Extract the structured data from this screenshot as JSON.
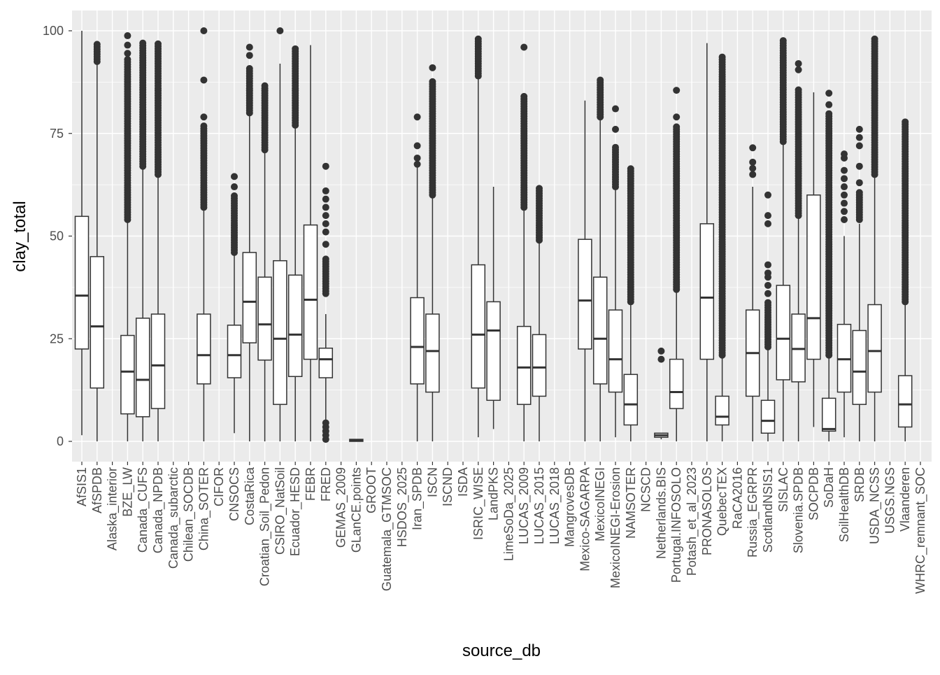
{
  "chart_data": {
    "type": "boxplot",
    "title": "",
    "xlabel": "source_db",
    "ylabel": "clay_total",
    "ylim": [
      0,
      100
    ],
    "yticks": [
      0,
      25,
      50,
      75,
      100
    ],
    "grid": true,
    "categories": [
      "AfSIS1",
      "AfSPDB",
      "Alaska_interior",
      "BZE_LW",
      "Canada_CUFS",
      "Canada_NPDB",
      "Canada_subarctic",
      "Chilean_SOCDB",
      "China_SOTER",
      "CIFOR",
      "CNSOCS",
      "CostaRica",
      "Croatian_Soil_Pedon",
      "CSIRO_NatSoil",
      "Ecuador_HESD",
      "FEBR",
      "FRED",
      "GEMAS_2009",
      "GLanCE.points",
      "GROOT",
      "Guatemala_GTMSOC",
      "HSDOS_2025",
      "Iran_SPDB",
      "ISCN",
      "ISCND",
      "ISDA",
      "ISRIC_WISE",
      "LandPKS",
      "LimeSoDa_2025",
      "LUCAS_2009",
      "LUCAS_2015",
      "LUCAS_2018",
      "MangrovesDB",
      "Mexico-SAGARPA",
      "MexicoINEGI",
      "MexicoINEGI-Erosion",
      "NAMSOTER",
      "NCSCD",
      "Netherlands.BIS",
      "Portugal.INFOSOLO",
      "Potash_et_al_2023",
      "PRONASOLOS",
      "QuebecTEX",
      "RaCA2016",
      "Russia_EGRPR",
      "ScotlandNSIS1",
      "SISLAC",
      "Slovenia.SPDB",
      "SOCPDB",
      "SoDaH",
      "SoilHealthDB",
      "SRDB",
      "USDA_NCSS",
      "USGS.NGS",
      "Vlaanderen",
      "WHRC_remnant_SOC"
    ],
    "boxes": {
      "AfSIS1": {
        "whisker": [
          1.5,
          100
        ],
        "q1": 22.5,
        "median": 35.5,
        "q3": 54.8
      },
      "AfSPDB": {
        "whisker": [
          0,
          92
        ],
        "q1": 13,
        "median": 28,
        "q3": 45,
        "outliers_dense": [
          92.5,
          97
        ]
      },
      "BZE_LW": {
        "whisker": [
          0,
          54
        ],
        "q1": 6.7,
        "median": 17,
        "q3": 25.8,
        "outliers_dense": [
          54,
          93
        ],
        "outliers": [
          94.5,
          96.5,
          98.8
        ]
      },
      "Canada_CUFS": {
        "whisker": [
          0,
          67
        ],
        "q1": 6,
        "median": 15,
        "q3": 30,
        "outliers_dense": [
          67,
          97
        ]
      },
      "Canada_NPDB": {
        "whisker": [
          0,
          65
        ],
        "q1": 8,
        "median": 18.5,
        "q3": 31,
        "outliers_dense": [
          65,
          97
        ]
      },
      "China_SOTER": {
        "whisker": [
          0,
          57
        ],
        "q1": 14,
        "median": 21,
        "q3": 31,
        "outliers_dense": [
          57,
          77
        ],
        "outliers": [
          79,
          88,
          100
        ]
      },
      "CNSOCS": {
        "whisker": [
          2,
          46
        ],
        "q1": 15.5,
        "median": 21,
        "q3": 28.3,
        "outliers_dense": [
          46,
          60
        ],
        "outliers": [
          62,
          64.5
        ]
      },
      "CostaRica": {
        "whisker": [
          0,
          80
        ],
        "q1": 24,
        "median": 34,
        "q3": 46,
        "outliers_dense": [
          80,
          91
        ],
        "outliers": [
          94,
          96
        ]
      },
      "Croatian_Soil_Pedon": {
        "whisker": [
          0,
          71
        ],
        "q1": 19.8,
        "median": 28.5,
        "q3": 40,
        "outliers_dense": [
          71,
          87
        ]
      },
      "CSIRO_NatSoil": {
        "whisker": [
          0,
          92
        ],
        "q1": 9,
        "median": 25,
        "q3": 44,
        "outliers": [
          100
        ]
      },
      "Ecuador_HESD": {
        "whisker": [
          0,
          77
        ],
        "q1": 15.8,
        "median": 26,
        "q3": 40.5,
        "outliers_dense": [
          77,
          96
        ]
      },
      "FEBR": {
        "whisker": [
          0,
          96.5
        ],
        "q1": 20,
        "median": 34.5,
        "q3": 52.7
      },
      "FRED": {
        "whisker": [
          5,
          31
        ],
        "q1": 15.5,
        "median": 20,
        "q3": 22.7,
        "outliers_dense": [
          36,
          45
        ],
        "outliers": [
          0.5,
          1.5,
          2.5,
          3.5,
          4.5,
          48,
          51,
          53,
          55,
          57,
          59,
          61,
          67
        ]
      },
      "GLanCE.points": {
        "whisker": [
          0,
          0.5
        ],
        "q1": 0,
        "median": 0.2,
        "q3": 0.5
      },
      "Iran_SPDB": {
        "whisker": [
          0,
          67
        ],
        "q1": 14,
        "median": 23,
        "q3": 35,
        "outliers": [
          67.5,
          69,
          72,
          79
        ]
      },
      "ISCN": {
        "whisker": [
          0,
          60
        ],
        "q1": 12,
        "median": 22,
        "q3": 31,
        "outliers_dense": [
          60,
          88
        ],
        "outliers": [
          91
        ]
      },
      "ISRIC_WISE": {
        "whisker": [
          1,
          89
        ],
        "q1": 13,
        "median": 26,
        "q3": 43,
        "outliers_dense": [
          89,
          98
        ]
      },
      "LandPKS": {
        "whisker": [
          3,
          62
        ],
        "q1": 10,
        "median": 27,
        "q3": 34
      },
      "LUCAS_2009": {
        "whisker": [
          0,
          57
        ],
        "q1": 9,
        "median": 18,
        "q3": 28,
        "outliers_dense": [
          57,
          84
        ],
        "outliers": [
          96
        ]
      },
      "LUCAS_2015": {
        "whisker": [
          0,
          49
        ],
        "q1": 11,
        "median": 18,
        "q3": 26,
        "outliers_dense": [
          49,
          62
        ]
      },
      "Mexico-SAGARPA": {
        "whisker": [
          0,
          83
        ],
        "q1": 22.5,
        "median": 34.3,
        "q3": 49.2
      },
      "MexicoINEGI": {
        "whisker": [
          0,
          79
        ],
        "q1": 14,
        "median": 25,
        "q3": 40,
        "outliers_dense": [
          79,
          88
        ]
      },
      "MexicoINEGI-Erosion": {
        "whisker": [
          1,
          62
        ],
        "q1": 12,
        "median": 20,
        "q3": 32,
        "outliers_dense": [
          62,
          72
        ],
        "outliers": [
          76,
          81
        ]
      },
      "NAMSOTER": {
        "whisker": [
          0,
          34
        ],
        "q1": 4,
        "median": 9,
        "q3": 16.3,
        "outliers_dense": [
          34,
          67
        ]
      },
      "Netherlands.BIS": {
        "whisker": [
          0.5,
          2
        ],
        "q1": 1,
        "median": 1.5,
        "q3": 2,
        "outliers": [
          20,
          22
        ]
      },
      "Portugal.INFOSOLO": {
        "whisker": [
          0,
          37
        ],
        "q1": 8,
        "median": 12,
        "q3": 20,
        "outliers_dense": [
          37,
          77
        ],
        "outliers": [
          79,
          85.5
        ]
      },
      "PRONASOLOS": {
        "whisker": [
          0,
          97
        ],
        "q1": 20,
        "median": 35,
        "q3": 53
      },
      "QuebecTEX": {
        "whisker": [
          0,
          21
        ],
        "q1": 4,
        "median": 6,
        "q3": 11,
        "outliers_dense": [
          21,
          94
        ]
      },
      "Russia_EGRPR": {
        "whisker": [
          0,
          62
        ],
        "q1": 11,
        "median": 21.5,
        "q3": 32,
        "outliers": [
          65,
          66.5,
          68,
          71.5
        ]
      },
      "ScotlandNSIS1": {
        "whisker": [
          0,
          23
        ],
        "q1": 2,
        "median": 5,
        "q3": 10,
        "outliers_dense": [
          23,
          34
        ],
        "outliers": [
          36,
          38,
          40,
          41,
          43,
          53,
          55,
          60
        ]
      },
      "SISLAC": {
        "whisker": [
          0,
          73
        ],
        "q1": 15,
        "median": 25,
        "q3": 38,
        "outliers_dense": [
          73,
          98
        ]
      },
      "Slovenia.SPDB": {
        "whisker": [
          0,
          55
        ],
        "q1": 14.5,
        "median": 22.5,
        "q3": 31,
        "outliers_dense": [
          55,
          86
        ],
        "outliers": [
          90.5,
          92
        ]
      },
      "SOCPDB": {
        "whisker": [
          3.5,
          85
        ],
        "q1": 20,
        "median": 30,
        "q3": 60
      },
      "SoDaH": {
        "whisker": [
          0,
          21
        ],
        "q1": 2.5,
        "median": 3,
        "q3": 10.5,
        "outliers_dense": [
          21,
          80
        ],
        "outliers": [
          82,
          84.8
        ]
      },
      "SoilHealthDB": {
        "whisker": [
          1,
          50
        ],
        "q1": 12,
        "median": 20,
        "q3": 28.5,
        "outliers": [
          54,
          56,
          58,
          60,
          62,
          64,
          66,
          69,
          70
        ]
      },
      "SRDB": {
        "whisker": [
          0,
          53
        ],
        "q1": 9,
        "median": 17,
        "q3": 27,
        "outliers_dense": [
          54,
          61
        ],
        "outliers": [
          63,
          67,
          72,
          74,
          76
        ]
      },
      "USDA_NCSS": {
        "whisker": [
          0,
          65
        ],
        "q1": 12,
        "median": 22,
        "q3": 33.3,
        "outliers_dense": [
          65,
          98
        ]
      },
      "Vlaanderen": {
        "whisker": [
          0,
          34
        ],
        "q1": 3.5,
        "median": 9,
        "q3": 16,
        "outliers_dense": [
          34,
          78
        ]
      }
    }
  },
  "colors": {
    "panel": "#ebebeb",
    "grid": "#ffffff",
    "box": "#333333",
    "text": "#4d4d4d"
  }
}
